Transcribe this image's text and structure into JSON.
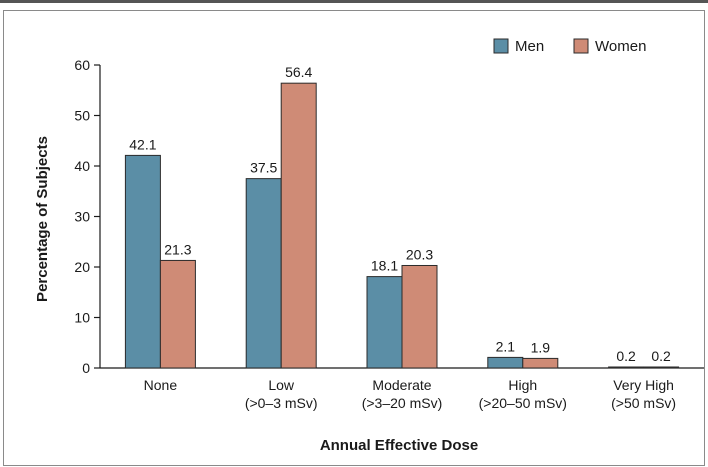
{
  "chart_data": {
    "type": "bar",
    "categories": [
      [
        "None"
      ],
      [
        "Low",
        "(>0–3 mSv)"
      ],
      [
        "Moderate",
        "(>3–20 mSv)"
      ],
      [
        "High",
        "(>20–50 mSv)"
      ],
      [
        "Very High",
        "(>50 mSv)"
      ]
    ],
    "series": [
      {
        "name": "Men",
        "color": "#5b8ea6",
        "values": [
          42.1,
          37.5,
          18.1,
          2.1,
          0.2
        ]
      },
      {
        "name": "Women",
        "color": "#cf8b76",
        "values": [
          21.3,
          56.4,
          20.3,
          1.9,
          0.2
        ]
      }
    ],
    "xlabel": "Annual Effective Dose",
    "ylabel": "Percentage of Subjects",
    "ylim": [
      0,
      60
    ],
    "yticks": [
      0,
      10,
      20,
      30,
      40,
      50,
      60
    ],
    "legend_position": "top-right",
    "grid": false
  }
}
